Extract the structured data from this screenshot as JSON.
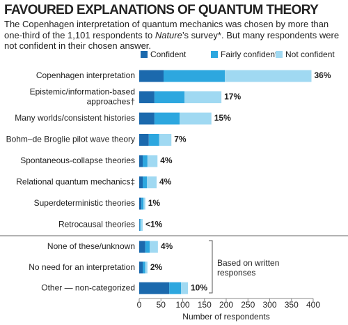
{
  "chart_data": {
    "type": "stacked_bar_horizontal",
    "title": "FAVOURED EXPLANATIONS OF QUANTUM THEORY",
    "subtitle": [
      "The Copenhagen interpretation of quantum mechanics was chosen by more than one-third of the 1,101 respondents to ",
      "Nature",
      "’s survey*. But many respondents were not confident in their chosen answer."
    ],
    "categories": [
      [
        "Copenhagen interpretation"
      ],
      [
        "Epistemic/information-based",
        "approaches†"
      ],
      [
        "Many worlds/consistent histories"
      ],
      [
        "Bohm–de Broglie pilot wave theory"
      ],
      [
        "Spontaneous-collapse theories"
      ],
      [
        "Relational quantum mechanics‡"
      ],
      [
        "Superdeterministic theories"
      ],
      [
        "Retrocausal theories"
      ],
      [
        "None of these/unknown"
      ],
      [
        "No need for an interpretation"
      ],
      [
        "Other — non-categorized"
      ]
    ],
    "series": [
      {
        "name": "Confident",
        "color": "#1b69ad",
        "values": [
          56,
          35,
          35,
          22,
          8,
          8,
          5,
          1,
          14,
          8,
          69
        ]
      },
      {
        "name": "Fairly confident",
        "color": "#2da7df",
        "values": [
          141,
          69,
          58,
          24,
          11,
          10,
          5,
          2,
          10,
          6,
          27
        ]
      },
      {
        "name": "Not confident",
        "color": "#a0d9f2",
        "values": [
          199,
          85,
          73,
          28,
          23,
          22,
          4,
          5,
          19,
          5,
          16
        ]
      }
    ],
    "share_labels": [
      "36%",
      "17%",
      "15%",
      "7%",
      "4%",
      "4%",
      "1%",
      "<1%",
      "4%",
      "2%",
      "10%"
    ],
    "annotation": [
      "Based on written",
      "responses"
    ],
    "xlabel": "Number of respondents",
    "xlim": [
      0,
      400
    ],
    "xticks": [
      0,
      50,
      100,
      150,
      200,
      250,
      300,
      350,
      400
    ],
    "grid": false,
    "legend": "top"
  }
}
